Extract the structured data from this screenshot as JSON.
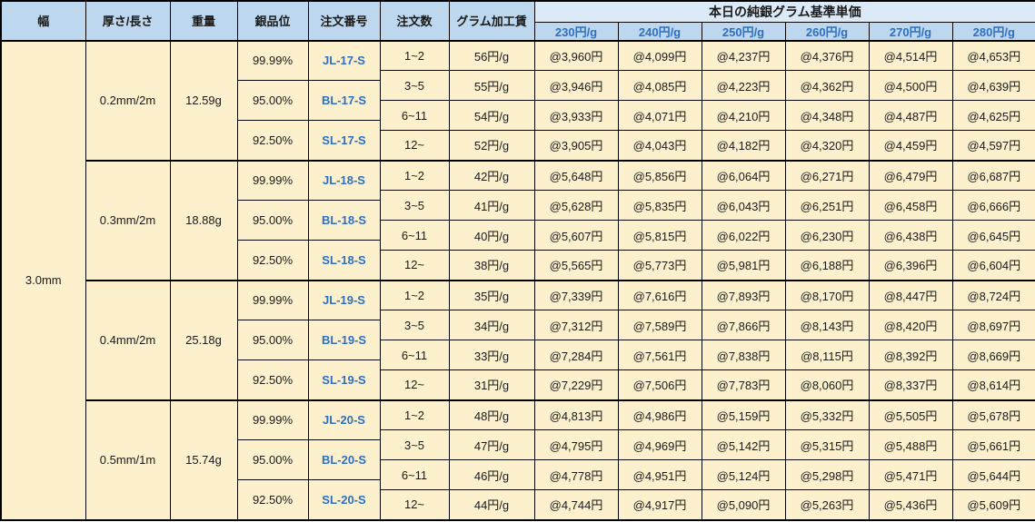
{
  "colors": {
    "header_bg": "#bdd7ee",
    "group_header_bg": "#dce9f7",
    "cell_bg": "#fcf0cd",
    "accent_blue": "#2f6fc1",
    "border": "#000000"
  },
  "table_header": {
    "width": "幅",
    "thickness_length": "厚さ/長さ",
    "weight": "重量",
    "purity": "銀品位",
    "order_number": "注文番号",
    "order_qty": "注文数",
    "gram_fee": "グラム加工賃",
    "price_group_title": "本日の純銀グラム基準単価",
    "price_tiers": [
      "230円/g",
      "240円/g",
      "250円/g",
      "260円/g",
      "270円/g",
      "280円/g"
    ]
  },
  "width_value": "3.0mm",
  "blocks": [
    {
      "thickness_length": "0.2mm/2m",
      "weight": "12.59g",
      "purities": [
        {
          "purity": "99.99%",
          "order_no": "JL-17-S"
        },
        {
          "purity": "95.00%",
          "order_no": "BL-17-S"
        },
        {
          "purity": "92.50%",
          "order_no": "SL-17-S"
        }
      ],
      "rows": [
        {
          "qty": "1~2",
          "fee": "56円/g",
          "prices": [
            "@3,960円",
            "@4,099円",
            "@4,237円",
            "@4,376円",
            "@4,514円",
            "@4,653円"
          ]
        },
        {
          "qty": "3~5",
          "fee": "55円/g",
          "prices": [
            "@3,946円",
            "@4,085円",
            "@4,223円",
            "@4,362円",
            "@4,500円",
            "@4,639円"
          ]
        },
        {
          "qty": "6~11",
          "fee": "54円/g",
          "prices": [
            "@3,933円",
            "@4,071円",
            "@4,210円",
            "@4,348円",
            "@4,487円",
            "@4,625円"
          ]
        },
        {
          "qty": "12~",
          "fee": "52円/g",
          "prices": [
            "@3,905円",
            "@4,043円",
            "@4,182円",
            "@4,320円",
            "@4,459円",
            "@4,597円"
          ]
        }
      ]
    },
    {
      "thickness_length": "0.3mm/2m",
      "weight": "18.88g",
      "purities": [
        {
          "purity": "99.99%",
          "order_no": "JL-18-S"
        },
        {
          "purity": "95.00%",
          "order_no": "BL-18-S"
        },
        {
          "purity": "92.50%",
          "order_no": "SL-18-S"
        }
      ],
      "rows": [
        {
          "qty": "1~2",
          "fee": "42円/g",
          "prices": [
            "@5,648円",
            "@5,856円",
            "@6,064円",
            "@6,271円",
            "@6,479円",
            "@6,687円"
          ]
        },
        {
          "qty": "3~5",
          "fee": "41円/g",
          "prices": [
            "@5,628円",
            "@5,835円",
            "@6,043円",
            "@6,251円",
            "@6,458円",
            "@6,666円"
          ]
        },
        {
          "qty": "6~11",
          "fee": "40円/g",
          "prices": [
            "@5,607円",
            "@5,815円",
            "@6,022円",
            "@6,230円",
            "@6,438円",
            "@6,645円"
          ]
        },
        {
          "qty": "12~",
          "fee": "38円/g",
          "prices": [
            "@5,565円",
            "@5,773円",
            "@5,981円",
            "@6,188円",
            "@6,396円",
            "@6,604円"
          ]
        }
      ]
    },
    {
      "thickness_length": "0.4mm/2m",
      "weight": "25.18g",
      "purities": [
        {
          "purity": "99.99%",
          "order_no": "JL-19-S"
        },
        {
          "purity": "95.00%",
          "order_no": "BL-19-S"
        },
        {
          "purity": "92.50%",
          "order_no": "SL-19-S"
        }
      ],
      "rows": [
        {
          "qty": "1~2",
          "fee": "35円/g",
          "prices": [
            "@7,339円",
            "@7,616円",
            "@7,893円",
            "@8,170円",
            "@8,447円",
            "@8,724円"
          ]
        },
        {
          "qty": "3~5",
          "fee": "34円/g",
          "prices": [
            "@7,312円",
            "@7,589円",
            "@7,866円",
            "@8,143円",
            "@8,420円",
            "@8,697円"
          ]
        },
        {
          "qty": "6~11",
          "fee": "33円/g",
          "prices": [
            "@7,284円",
            "@7,561円",
            "@7,838円",
            "@8,115円",
            "@8,392円",
            "@8,669円"
          ]
        },
        {
          "qty": "12~",
          "fee": "31円/g",
          "prices": [
            "@7,229円",
            "@7,506円",
            "@7,783円",
            "@8,060円",
            "@8,337円",
            "@8,614円"
          ]
        }
      ]
    },
    {
      "thickness_length": "0.5mm/1m",
      "weight": "15.74g",
      "purities": [
        {
          "purity": "99.99%",
          "order_no": "JL-20-S"
        },
        {
          "purity": "95.00%",
          "order_no": "BL-20-S"
        },
        {
          "purity": "92.50%",
          "order_no": "SL-20-S"
        }
      ],
      "rows": [
        {
          "qty": "1~2",
          "fee": "48円/g",
          "prices": [
            "@4,813円",
            "@4,986円",
            "@5,159円",
            "@5,332円",
            "@5,505円",
            "@5,678円"
          ]
        },
        {
          "qty": "3~5",
          "fee": "47円/g",
          "prices": [
            "@4,795円",
            "@4,969円",
            "@5,142円",
            "@5,315円",
            "@5,488円",
            "@5,661円"
          ]
        },
        {
          "qty": "6~11",
          "fee": "46円/g",
          "prices": [
            "@4,778円",
            "@4,951円",
            "@5,124円",
            "@5,298円",
            "@5,471円",
            "@5,644円"
          ]
        },
        {
          "qty": "12~",
          "fee": "44円/g",
          "prices": [
            "@4,744円",
            "@4,917円",
            "@5,090円",
            "@5,263円",
            "@5,436円",
            "@5,609円"
          ]
        }
      ]
    }
  ]
}
